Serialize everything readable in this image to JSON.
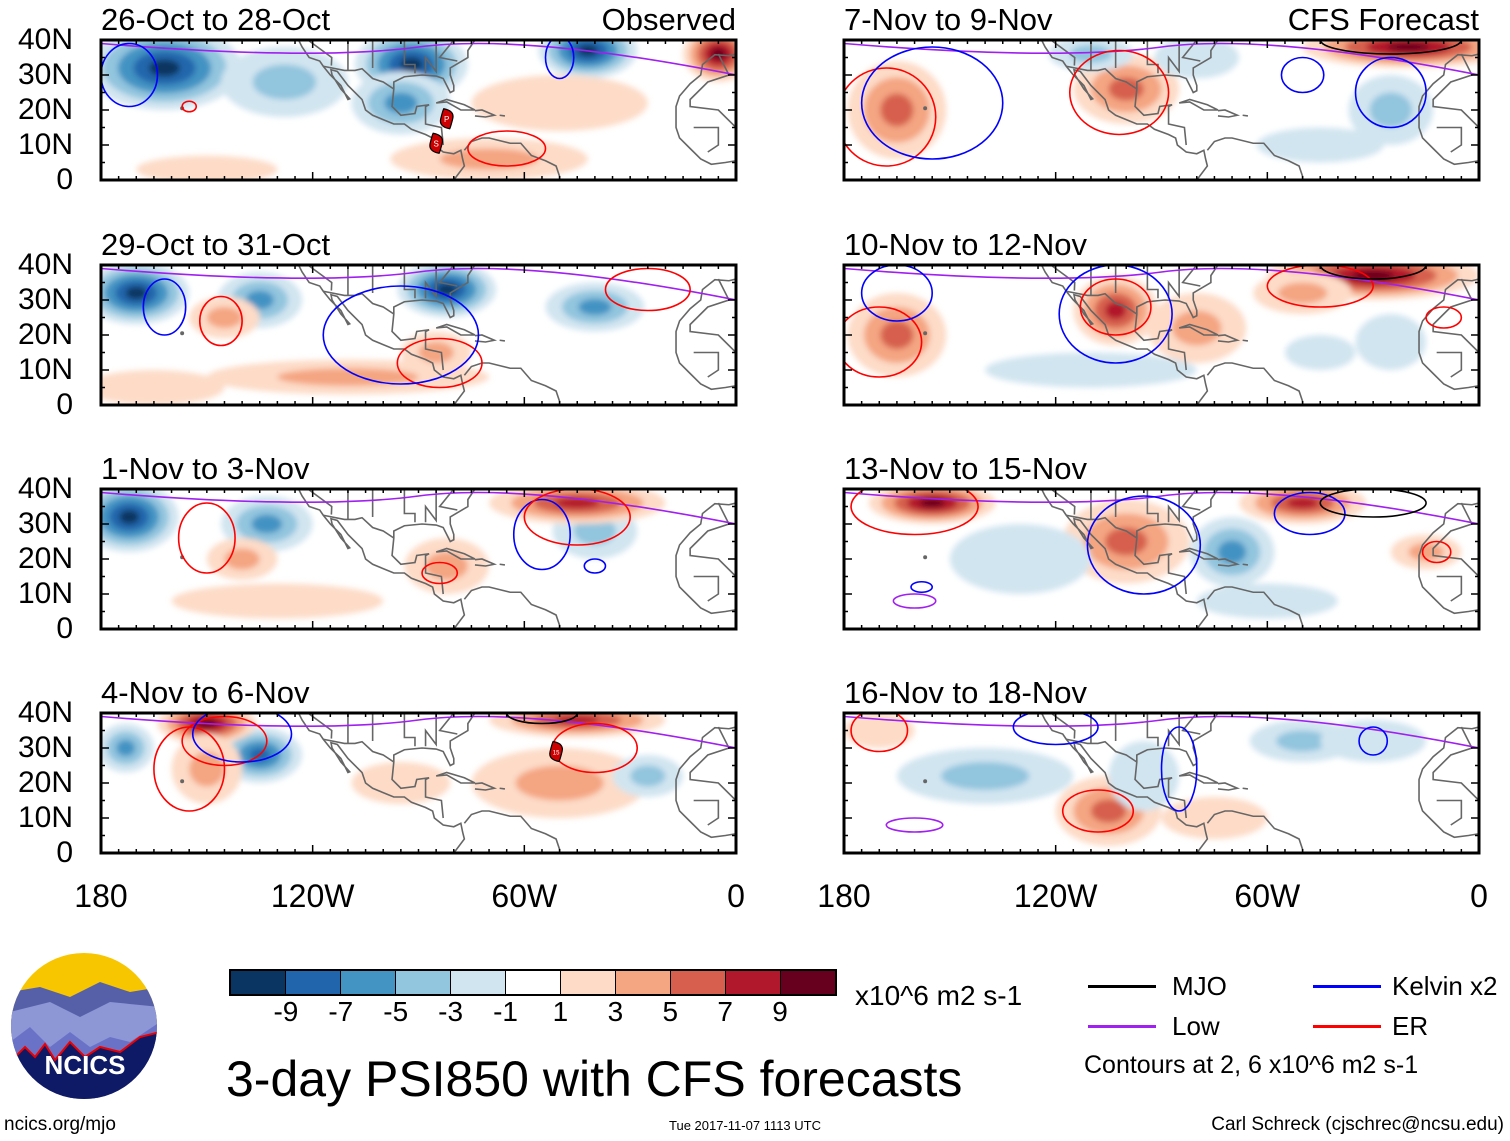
{
  "figure": {
    "title": "3-day PSI850 with CFS forecasts",
    "units": "x10^6 m2 s-1",
    "observed_label": "Observed",
    "forecast_label": "CFS Forecast",
    "footer_left": "ncics.org/mjo",
    "footer_center": "Tue 2017-11-07 1113 UTC",
    "footer_right": "Carl Schreck (cjschrec@ncsu.edu)",
    "logo_text": "NCICS"
  },
  "legend": {
    "items": [
      {
        "label": "MJO",
        "color": "#000000"
      },
      {
        "label": "Kelvin x2",
        "color": "#0000ff"
      },
      {
        "label": "Low",
        "color": "#a020f0"
      },
      {
        "label": "ER",
        "color": "#ff0000"
      }
    ],
    "contour_note": "Contours at 2, 6 x10^6 m2 s-1"
  },
  "colorbar": {
    "ticks": [
      "-9",
      "-7",
      "-5",
      "-3",
      "-1",
      "1",
      "3",
      "5",
      "7",
      "9"
    ],
    "colors": [
      "#0a3461",
      "#2166ac",
      "#4393c3",
      "#92c5de",
      "#d1e5f0",
      "#ffffff",
      "#fddbc7",
      "#f4a582",
      "#d6604d",
      "#b2182b",
      "#67001f"
    ]
  },
  "axes": {
    "y_ticks": [
      "40N",
      "30N",
      "20N",
      "10N",
      "0"
    ],
    "x_ticks": [
      "180",
      "120W",
      "60W",
      "0"
    ]
  },
  "chart_data": {
    "type": "heatmap",
    "lon_range": [
      -180,
      0
    ],
    "lat_range": [
      0,
      40
    ],
    "panels": [
      {
        "title": "26-Oct to 28-Oct",
        "kind": "observed",
        "blobs": [
          [
            -162,
            32,
            22,
            12,
            -9
          ],
          [
            -128,
            28,
            18,
            10,
            -3
          ],
          [
            -92,
            33,
            16,
            10,
            -9
          ],
          [
            -95,
            22,
            14,
            9,
            -5
          ],
          [
            -42,
            37,
            14,
            8,
            -9
          ],
          [
            -5,
            36,
            10,
            8,
            9
          ],
          [
            -70,
            6,
            28,
            6,
            3
          ],
          [
            -150,
            3,
            20,
            4,
            1
          ],
          [
            -50,
            22,
            25,
            8,
            1
          ]
        ],
        "contours": [
          [
            "blue",
            -172,
            30,
            8,
            9
          ],
          [
            "red",
            -65,
            9,
            11,
            5
          ],
          [
            "red",
            -155,
            21,
            2,
            1.5
          ],
          [
            "blue",
            -50,
            35,
            4,
            6
          ]
        ],
        "storms": [
          [
            "P",
            -82,
            17.5
          ],
          [
            "S",
            -85,
            10.5
          ]
        ]
      },
      {
        "title": "29-Oct to 31-Oct",
        "kind": "observed",
        "blobs": [
          [
            -170,
            32,
            15,
            9,
            -9
          ],
          [
            -135,
            30,
            12,
            8,
            -5
          ],
          [
            -82,
            33,
            14,
            8,
            -9
          ],
          [
            -40,
            28,
            14,
            7,
            -5
          ],
          [
            -145,
            25,
            10,
            6,
            3
          ],
          [
            -110,
            8,
            40,
            5,
            3
          ],
          [
            -165,
            5,
            20,
            5,
            1
          ],
          [
            -85,
            15,
            10,
            6,
            3
          ]
        ],
        "contours": [
          [
            "blue",
            -162,
            28,
            6,
            8
          ],
          [
            "red",
            -146,
            24,
            6,
            7
          ],
          [
            "red",
            -84,
            12,
            12,
            7
          ],
          [
            "blue",
            -95,
            20,
            22,
            14
          ],
          [
            "red",
            -25,
            33,
            12,
            6
          ]
        ],
        "storms": []
      },
      {
        "title": "1-Nov to 3-Nov",
        "kind": "observed",
        "blobs": [
          [
            -172,
            32,
            14,
            10,
            -9
          ],
          [
            -133,
            30,
            13,
            8,
            -5
          ],
          [
            -40,
            28,
            12,
            8,
            -3
          ],
          [
            -45,
            36,
            25,
            6,
            7
          ],
          [
            -82,
            18,
            12,
            8,
            3
          ],
          [
            -130,
            8,
            30,
            5,
            1
          ],
          [
            -140,
            20,
            10,
            6,
            3
          ]
        ],
        "contours": [
          [
            "red",
            -150,
            26,
            8,
            10
          ],
          [
            "red",
            -84,
            16,
            5,
            3
          ],
          [
            "blue",
            -55,
            27,
            8,
            10
          ],
          [
            "red",
            -45,
            32,
            15,
            8
          ],
          [
            "blue",
            -40,
            18,
            3,
            2
          ]
        ],
        "storms": []
      },
      {
        "title": "4-Nov to 6-Nov",
        "kind": "observed",
        "blobs": [
          [
            -173,
            30,
            8,
            7,
            -5
          ],
          [
            -135,
            28,
            12,
            8,
            -7
          ],
          [
            -150,
            37,
            14,
            6,
            9
          ],
          [
            -150,
            24,
            10,
            10,
            3
          ],
          [
            -45,
            38,
            25,
            5,
            7
          ],
          [
            -50,
            20,
            25,
            10,
            3
          ],
          [
            -25,
            22,
            10,
            6,
            -3
          ],
          [
            -95,
            20,
            14,
            6,
            1
          ]
        ],
        "contours": [
          [
            "red",
            -155,
            24,
            10,
            12
          ],
          [
            "red",
            -145,
            32,
            12,
            7
          ],
          [
            "blue",
            -140,
            34,
            14,
            8
          ],
          [
            "red",
            -40,
            30,
            12,
            7
          ],
          [
            "black",
            -55,
            40,
            10,
            3
          ]
        ],
        "storms": [
          [
            "15",
            -51,
            29
          ]
        ]
      },
      {
        "title": "7-Nov to 9-Nov",
        "kind": "forecast",
        "blobs": [
          [
            -165,
            20,
            14,
            14,
            5
          ],
          [
            -100,
            26,
            15,
            10,
            5
          ],
          [
            -20,
            38,
            30,
            6,
            9
          ],
          [
            -110,
            36,
            12,
            5,
            -3
          ],
          [
            -80,
            35,
            12,
            6,
            -1
          ],
          [
            -25,
            20,
            12,
            10,
            -3
          ],
          [
            -45,
            10,
            18,
            5,
            -1
          ]
        ],
        "contours": [
          [
            "red",
            -168,
            18,
            14,
            14
          ],
          [
            "blue",
            -155,
            22,
            20,
            16
          ],
          [
            "red",
            -102,
            25,
            14,
            12
          ],
          [
            "blue",
            -50,
            30,
            6,
            5
          ],
          [
            "blue",
            -25,
            25,
            10,
            10
          ],
          [
            "black",
            -25,
            40,
            20,
            4
          ]
        ],
        "storms": []
      },
      {
        "title": "10-Nov to 12-Nov",
        "kind": "forecast",
        "blobs": [
          [
            -165,
            20,
            14,
            12,
            5
          ],
          [
            -103,
            27,
            12,
            10,
            7
          ],
          [
            -30,
            37,
            30,
            7,
            9
          ],
          [
            -80,
            22,
            14,
            10,
            3
          ],
          [
            -50,
            32,
            14,
            6,
            3
          ],
          [
            -110,
            10,
            30,
            5,
            -1
          ],
          [
            -25,
            18,
            10,
            8,
            -1
          ],
          [
            -45,
            15,
            10,
            5,
            -1
          ]
        ],
        "contours": [
          [
            "red",
            -170,
            18,
            12,
            10
          ],
          [
            "blue",
            -165,
            32,
            10,
            8
          ],
          [
            "red",
            -103,
            28,
            10,
            8
          ],
          [
            "blue",
            -103,
            26,
            16,
            14
          ],
          [
            "red",
            -45,
            34,
            15,
            6
          ],
          [
            "black",
            -30,
            40,
            15,
            4
          ],
          [
            "red",
            -10,
            25,
            5,
            3
          ]
        ],
        "storms": []
      },
      {
        "title": "13-Nov to 15-Nov",
        "kind": "forecast",
        "blobs": [
          [
            -155,
            36,
            18,
            6,
            9
          ],
          [
            -100,
            25,
            18,
            12,
            5
          ],
          [
            -70,
            22,
            12,
            10,
            -5
          ],
          [
            -50,
            36,
            18,
            6,
            7
          ],
          [
            -15,
            22,
            10,
            5,
            3
          ],
          [
            -130,
            20,
            20,
            10,
            -1
          ],
          [
            -60,
            8,
            20,
            5,
            -1
          ]
        ],
        "contours": [
          [
            "red",
            -160,
            35,
            18,
            8
          ],
          [
            "blue",
            -95,
            24,
            16,
            14
          ],
          [
            "blue",
            -48,
            33,
            10,
            6
          ],
          [
            "red",
            -12,
            22,
            4,
            3
          ],
          [
            "purple",
            -160,
            8,
            6,
            2
          ],
          [
            "blue",
            -158,
            12,
            3,
            1.5
          ],
          [
            "black",
            -30,
            36,
            15,
            4
          ]
        ],
        "storms": []
      },
      {
        "title": "16-Nov to 18-Nov",
        "kind": "forecast",
        "blobs": [
          [
            -140,
            22,
            25,
            8,
            -3
          ],
          [
            -105,
            12,
            15,
            10,
            5
          ],
          [
            -95,
            22,
            10,
            10,
            -1
          ],
          [
            -50,
            32,
            15,
            6,
            -3
          ],
          [
            -30,
            32,
            15,
            6,
            -1
          ],
          [
            -170,
            35,
            10,
            5,
            1
          ],
          [
            -75,
            10,
            15,
            6,
            1
          ]
        ],
        "contours": [
          [
            "red",
            -108,
            12,
            10,
            6
          ],
          [
            "blue",
            -85,
            24,
            5,
            12
          ],
          [
            "blue",
            -30,
            32,
            4,
            4
          ],
          [
            "purple",
            -160,
            8,
            8,
            2
          ],
          [
            "red",
            -170,
            35,
            8,
            6
          ],
          [
            "blue",
            -120,
            36,
            12,
            5
          ]
        ],
        "storms": []
      }
    ],
    "low_line_lat": [
      36,
      32,
      30
    ]
  }
}
